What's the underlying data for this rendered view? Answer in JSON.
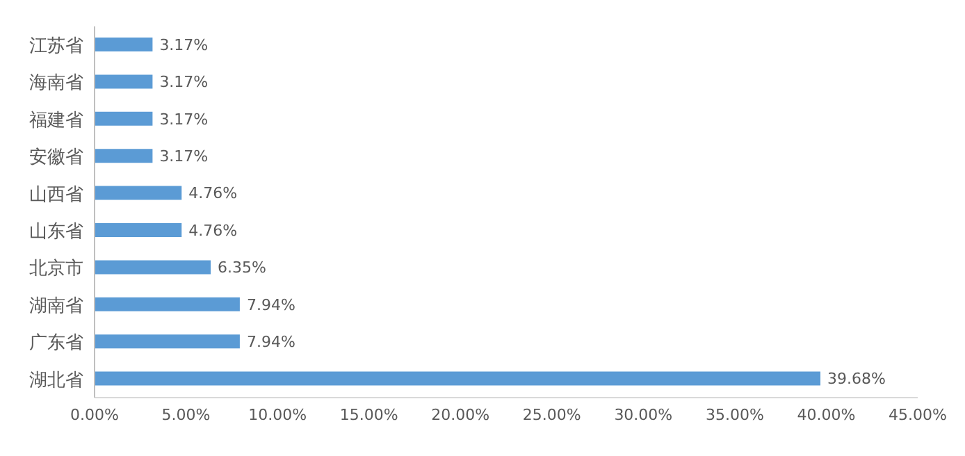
{
  "chart_data": {
    "type": "bar",
    "orientation": "horizontal",
    "categories": [
      "江苏省",
      "海南省",
      "福建省",
      "安徽省",
      "山西省",
      "山东省",
      "北京市",
      "湖南省",
      "广东省",
      "湖北省"
    ],
    "values": [
      3.17,
      3.17,
      3.17,
      3.17,
      4.76,
      4.76,
      6.35,
      7.94,
      7.94,
      39.68
    ],
    "value_labels": [
      "3.17%",
      "3.17%",
      "3.17%",
      "3.17%",
      "4.76%",
      "4.76%",
      "6.35%",
      "7.94%",
      "7.94%",
      "39.68%"
    ],
    "color": "#5b9bd5",
    "xlim": [
      0,
      45
    ],
    "xticks": [
      {
        "value": 0,
        "label": "0.00%"
      },
      {
        "value": 5,
        "label": "5.00%"
      },
      {
        "value": 10,
        "label": "10.00%"
      },
      {
        "value": 15,
        "label": "15.00%"
      },
      {
        "value": 20,
        "label": "20.00%"
      },
      {
        "value": 25,
        "label": "25.00%"
      },
      {
        "value": 30,
        "label": "30.00%"
      },
      {
        "value": 35,
        "label": "35.00%"
      },
      {
        "value": 40,
        "label": "40.00%"
      },
      {
        "value": 45,
        "label": "45.00%"
      }
    ],
    "grid": false,
    "legend": false
  }
}
